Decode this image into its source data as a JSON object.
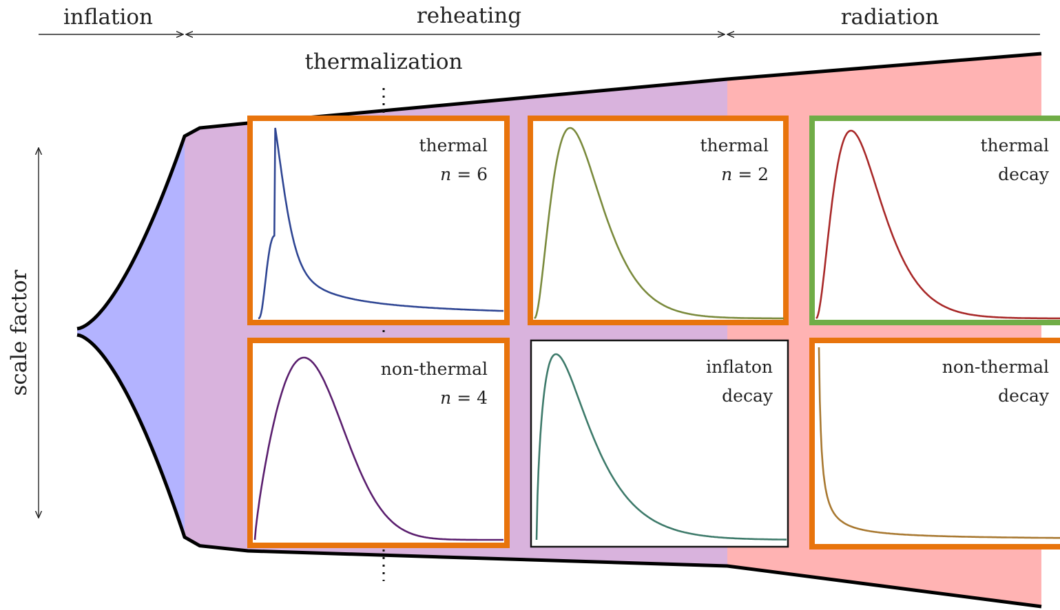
{
  "eras": {
    "inflation": "inflation",
    "reheating": "reheating",
    "radiation": "radiation"
  },
  "thermalization_label": "thermalization",
  "y_axis_label": "scale factor",
  "colors": {
    "inflation_region": "#b3b3ff",
    "reheating_region": "#d9b3dd",
    "radiation_region": "#ffb3b3",
    "frame_orange": "#e8740c",
    "frame_green": "#70ad47",
    "frame_black": "#111111"
  },
  "panels": [
    {
      "id": "thermal-n6",
      "line1": "thermal",
      "line2_var": "n",
      "line2_eq": " = 6",
      "frame": "orange",
      "curve_color": "#2e4593"
    },
    {
      "id": "thermal-n2",
      "line1": "thermal",
      "line2_var": "n",
      "line2_eq": " = 2",
      "frame": "orange",
      "curve_color": "#7a8a3c"
    },
    {
      "id": "thermal-decay",
      "line1": "thermal",
      "line2": "decay",
      "frame": "green",
      "curve_color": "#a82828"
    },
    {
      "id": "non-thermal-n4",
      "line1": "non-thermal",
      "line2_var": "n",
      "line2_eq": " = 4",
      "frame": "orange",
      "curve_color": "#5a1e6e"
    },
    {
      "id": "inflaton-decay",
      "line1": "inflaton",
      "line2": "decay",
      "frame": "black",
      "curve_color": "#3d7a6a"
    },
    {
      "id": "non-thermal-decay",
      "line1": "non-thermal",
      "line2": "decay",
      "frame": "orange",
      "curve_color": "#a87830"
    }
  ]
}
